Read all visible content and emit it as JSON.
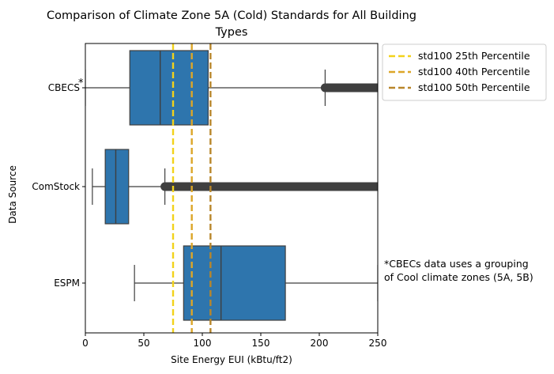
{
  "chart_data": {
    "type": "boxplot",
    "orientation": "horizontal",
    "title_lines": [
      "Comparison of Climate Zone 5A (Cold) Standards for All Building",
      "Types"
    ],
    "xlabel": "Site Energy EUI (kBtu/ft2)",
    "ylabel": "Data Source",
    "xlim": [
      0,
      250
    ],
    "xticks": [
      0,
      50,
      100,
      150,
      200,
      250
    ],
    "grid": false,
    "box_color": "#2e75ad",
    "categories": [
      "CBECS",
      "ComStock",
      "ESPM"
    ],
    "category_markers": [
      "*",
      "",
      ""
    ],
    "boxes": [
      {
        "name": "CBECS",
        "whisker_low": 0,
        "q1": 38,
        "median": 64,
        "q3": 105,
        "whisker_high": 205,
        "outliers_from": 205,
        "outliers_to": 250
      },
      {
        "name": "ComStock",
        "whisker_low": 6,
        "q1": 17,
        "median": 26,
        "q3": 37,
        "whisker_high": 68,
        "outliers_from": 68,
        "outliers_to": 250
      },
      {
        "name": "ESPM",
        "whisker_low": 42,
        "q1": 84,
        "median": 116,
        "q3": 171,
        "whisker_high": 250,
        "outliers_from": null,
        "outliers_to": null
      }
    ],
    "reference_lines": [
      {
        "name": "std100 25th Percentile",
        "x": 75,
        "color": "#f2d21b"
      },
      {
        "name": "std100 40th Percentile",
        "x": 91,
        "color": "#dca628"
      },
      {
        "name": "std100 50th Percentile",
        "x": 107,
        "color": "#b8862a"
      }
    ],
    "legend_position": "outside-upper-right",
    "annotation_lines": [
      "*CBECs data uses a grouping",
      "of Cool climate zones (5A, 5B)"
    ]
  }
}
